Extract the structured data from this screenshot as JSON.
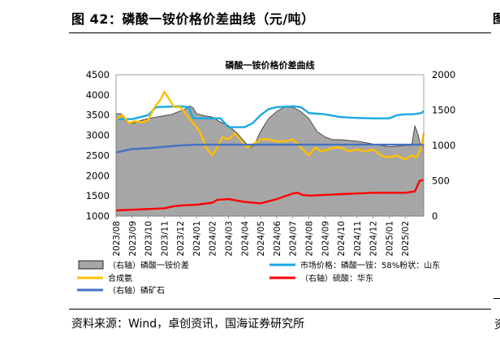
{
  "figure": {
    "title": "图 42：磷酸一铵价格价差曲线（元/吨）",
    "source": "资料来源：Wind，卓创资讯，国海证券研究所"
  },
  "chart_data": {
    "type": "area+line",
    "title": "磷酸一铵价格价差曲线",
    "y_left": {
      "min": 1000,
      "max": 4500,
      "ticks": [
        1000,
        1500,
        2000,
        2500,
        3000,
        3500,
        4000,
        4500
      ]
    },
    "y_right": {
      "min": 0,
      "max": 2000,
      "ticks": [
        0,
        500,
        1000,
        1500,
        2000
      ]
    },
    "x_ticks": [
      "2023/08",
      "2023/09",
      "2023/10",
      "2023/11",
      "2023/12",
      "2024/01",
      "2024/02",
      "2024/03",
      "2024/04",
      "2024/05",
      "2024/06",
      "2024/07",
      "2024/08",
      "2024/09",
      "2024/10",
      "2024/11",
      "2024/12",
      "2025/01",
      "2025/02"
    ],
    "x_range": [
      "2023/08",
      "2025/03"
    ],
    "series": [
      {
        "name": "（右轴）磷酸一铵价差",
        "axis": "right",
        "kind": "area",
        "color": "#a6a6a6",
        "points": [
          [
            0,
            1450
          ],
          [
            0.3,
            1450
          ],
          [
            0.6,
            1350
          ],
          [
            1,
            1310
          ],
          [
            1.5,
            1350
          ],
          [
            2,
            1380
          ],
          [
            2.5,
            1400
          ],
          [
            3,
            1420
          ],
          [
            3.5,
            1440
          ],
          [
            3.8,
            1470
          ],
          [
            4.2,
            1500
          ],
          [
            4.6,
            1560
          ],
          [
            4.8,
            1530
          ],
          [
            5.0,
            1450
          ],
          [
            5.5,
            1420
          ],
          [
            6,
            1400
          ],
          [
            6.5,
            1330
          ],
          [
            7,
            1280
          ],
          [
            7.5,
            1180
          ],
          [
            8,
            1050
          ],
          [
            8.3,
            970
          ],
          [
            8.6,
            1000
          ],
          [
            9,
            1200
          ],
          [
            9.5,
            1380
          ],
          [
            10,
            1480
          ],
          [
            10.5,
            1550
          ],
          [
            11,
            1540
          ],
          [
            11.5,
            1480
          ],
          [
            12,
            1380
          ],
          [
            12.5,
            1200
          ],
          [
            13,
            1120
          ],
          [
            13.5,
            1080
          ],
          [
            14,
            1080
          ],
          [
            14.5,
            1070
          ],
          [
            15,
            1060
          ],
          [
            15.5,
            1040
          ],
          [
            16,
            1020
          ],
          [
            16.5,
            1000
          ],
          [
            17,
            980
          ],
          [
            17.5,
            990
          ],
          [
            18,
            1000
          ],
          [
            18.4,
            1000
          ],
          [
            18.6,
            1280
          ],
          [
            18.8,
            1150
          ],
          [
            19,
            950
          ],
          [
            19.15,
            1000
          ]
        ]
      },
      {
        "name": "市场价格：磷酸一铵：58%粉状：山东",
        "axis": "left",
        "kind": "line",
        "color": "#1aa7e4",
        "points": [
          [
            0,
            3400
          ],
          [
            1,
            3400
          ],
          [
            2,
            3500
          ],
          [
            2.5,
            3700
          ],
          [
            4,
            3720
          ],
          [
            4.5,
            3700
          ],
          [
            4.8,
            3430
          ],
          [
            5,
            3420
          ],
          [
            6.5,
            3420
          ],
          [
            7,
            3200
          ],
          [
            8,
            3200
          ],
          [
            8.5,
            3300
          ],
          [
            9,
            3500
          ],
          [
            9.5,
            3650
          ],
          [
            10,
            3700
          ],
          [
            11,
            3720
          ],
          [
            11.5,
            3700
          ],
          [
            12,
            3550
          ],
          [
            13,
            3520
          ],
          [
            14,
            3450
          ],
          [
            15,
            3430
          ],
          [
            16,
            3420
          ],
          [
            17,
            3420
          ],
          [
            17.5,
            3500
          ],
          [
            18,
            3520
          ],
          [
            18.5,
            3520
          ],
          [
            19,
            3550
          ],
          [
            19.15,
            3600
          ]
        ]
      },
      {
        "name": "合成氨",
        "axis": "left",
        "kind": "line",
        "color": "#ffc000",
        "points": [
          [
            0,
            3400
          ],
          [
            0.4,
            3500
          ],
          [
            0.8,
            3300
          ],
          [
            1.2,
            3350
          ],
          [
            1.6,
            3320
          ],
          [
            2,
            3380
          ],
          [
            2.4,
            3700
          ],
          [
            2.8,
            3900
          ],
          [
            3.0,
            4080
          ],
          [
            3.3,
            3900
          ],
          [
            3.6,
            3700
          ],
          [
            4,
            3700
          ],
          [
            4.4,
            3500
          ],
          [
            4.8,
            3300
          ],
          [
            5.2,
            3100
          ],
          [
            5.6,
            2700
          ],
          [
            6,
            2500
          ],
          [
            6.3,
            2700
          ],
          [
            6.6,
            2950
          ],
          [
            7,
            2900
          ],
          [
            7.4,
            3050
          ],
          [
            7.8,
            2850
          ],
          [
            8.2,
            2700
          ],
          [
            8.6,
            2800
          ],
          [
            9,
            2900
          ],
          [
            9.5,
            2900
          ],
          [
            10,
            2850
          ],
          [
            10.5,
            2850
          ],
          [
            11,
            2900
          ],
          [
            11.5,
            2700
          ],
          [
            12,
            2500
          ],
          [
            12.4,
            2700
          ],
          [
            12.8,
            2600
          ],
          [
            13.2,
            2650
          ],
          [
            13.6,
            2700
          ],
          [
            14,
            2700
          ],
          [
            14.5,
            2600
          ],
          [
            15,
            2650
          ],
          [
            15.5,
            2600
          ],
          [
            16,
            2650
          ],
          [
            16.5,
            2500
          ],
          [
            17,
            2450
          ],
          [
            17.5,
            2500
          ],
          [
            18,
            2400
          ],
          [
            18.4,
            2500
          ],
          [
            18.7,
            2450
          ],
          [
            19,
            2700
          ],
          [
            19.15,
            3050
          ]
        ]
      },
      {
        "name": "（右轴）磷矿石",
        "axis": "right",
        "kind": "line",
        "color": "#4472c4",
        "points": [
          [
            0,
            900
          ],
          [
            0.6,
            930
          ],
          [
            1,
            950
          ],
          [
            2,
            960
          ],
          [
            3,
            980
          ],
          [
            4,
            1000
          ],
          [
            5,
            1010
          ],
          [
            19.15,
            1010
          ]
        ]
      },
      {
        "name": "（右轴）硫酸：华东",
        "axis": "right",
        "kind": "line",
        "color": "#ff0000",
        "points": [
          [
            0,
            80
          ],
          [
            1,
            90
          ],
          [
            2,
            100
          ],
          [
            3,
            110
          ],
          [
            3.6,
            140
          ],
          [
            4,
            150
          ],
          [
            5,
            160
          ],
          [
            6,
            190
          ],
          [
            6.3,
            230
          ],
          [
            7,
            240
          ],
          [
            8,
            200
          ],
          [
            9,
            180
          ],
          [
            9.5,
            210
          ],
          [
            10,
            240
          ],
          [
            11,
            320
          ],
          [
            11.3,
            330
          ],
          [
            11.6,
            300
          ],
          [
            12,
            290
          ],
          [
            13,
            300
          ],
          [
            14,
            310
          ],
          [
            15,
            320
          ],
          [
            16,
            330
          ],
          [
            17,
            330
          ],
          [
            18,
            330
          ],
          [
            18.6,
            350
          ],
          [
            18.9,
            500
          ],
          [
            19.15,
            510
          ]
        ]
      }
    ],
    "legend": [
      "（右轴）磷酸一铵价差",
      "市场价格：磷酸一铵：58%粉状：山东",
      "合成氨",
      "（右轴）硫酸：华东",
      "（右轴）磷矿石"
    ],
    "legend_position": "bottom",
    "grid": false
  }
}
